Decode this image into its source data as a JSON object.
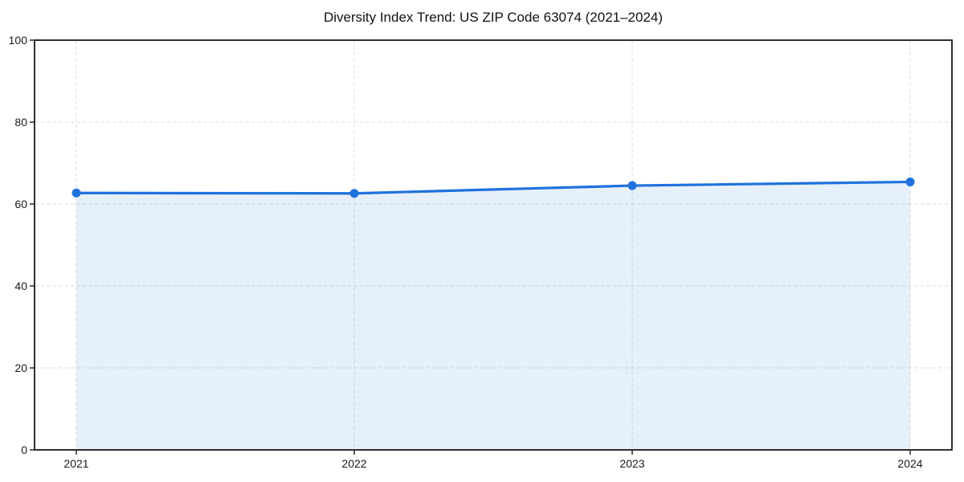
{
  "chart_data": {
    "type": "area",
    "title": "Diversity Index Trend: US ZIP Code 63074 (2021–2024)",
    "x": [
      "2021",
      "2022",
      "2023",
      "2024"
    ],
    "values": [
      62.7,
      62.6,
      64.5,
      65.4
    ],
    "xlabel": "",
    "ylabel": "",
    "ylim": [
      0,
      100
    ],
    "yticks": [
      0,
      20,
      40,
      60,
      80,
      100
    ],
    "grid": true,
    "grid_style": "dashed",
    "legend": false,
    "marker": "circle",
    "colors": {
      "line": "#1f72dd",
      "marker": "#1f72dd",
      "fill": "#1f72dd",
      "fill_opacity": 0.11,
      "grid": "#dedede",
      "axis": "#1a1a1a",
      "tick_text": "#1a1a1a",
      "background": "#ffffff"
    }
  }
}
